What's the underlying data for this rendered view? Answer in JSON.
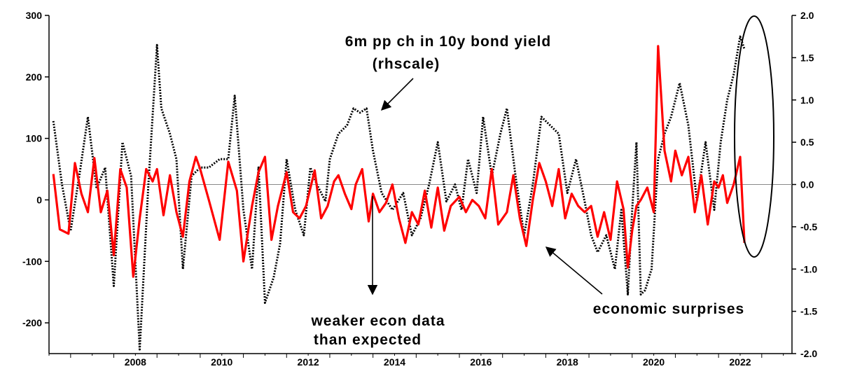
{
  "chart_data": {
    "type": "line",
    "title": "",
    "xlabel": "",
    "ylabel": "",
    "x_range": [
      2006.5,
      2023.7
    ],
    "ylim_left": [
      -250,
      300
    ],
    "ylim_right": [
      -2.0,
      2.0
    ],
    "x_ticks": [
      2008,
      2010,
      2012,
      2014,
      2016,
      2018,
      2020,
      2022
    ],
    "left_ticks": [
      300,
      200,
      100,
      0,
      -100,
      -200
    ],
    "left_tick_labels": [
      "300",
      "200",
      "100",
      "0",
      "-100",
      "-200"
    ],
    "right_ticks": [
      2.0,
      1.5,
      1.0,
      0.5,
      0.0,
      -0.5,
      -1.0,
      -1.5,
      -2.0
    ],
    "right_tick_labels": [
      "2.0",
      "1.5",
      "1.0",
      "0.5",
      "0.0",
      "-0.5",
      "-1.0",
      "-1.5",
      "-2.0"
    ],
    "reference_line_left": 25,
    "grid": false,
    "series": [
      {
        "name": "economic surprises",
        "axis": "left",
        "color": "#ff0000",
        "style": "solid",
        "x": [
          2006.6,
          2006.75,
          2006.95,
          2007.1,
          2007.25,
          2007.4,
          2007.55,
          2007.7,
          2007.85,
          2008.0,
          2008.15,
          2008.3,
          2008.45,
          2008.6,
          2008.75,
          2008.9,
          2009.0,
          2009.15,
          2009.3,
          2009.45,
          2009.6,
          2009.75,
          2009.9,
          2010.0,
          2010.2,
          2010.45,
          2010.65,
          2010.85,
          2011.0,
          2011.2,
          2011.35,
          2011.5,
          2011.65,
          2011.8,
          2012.0,
          2012.15,
          2012.3,
          2012.45,
          2012.65,
          2012.8,
          2012.95,
          2013.1,
          2013.2,
          2013.35,
          2013.5,
          2013.6,
          2013.75,
          2013.9,
          2014.0,
          2014.15,
          2014.3,
          2014.45,
          2014.6,
          2014.75,
          2014.9,
          2015.05,
          2015.2,
          2015.35,
          2015.5,
          2015.65,
          2015.8,
          2016.0,
          2016.15,
          2016.3,
          2016.45,
          2016.6,
          2016.75,
          2016.9,
          2017.1,
          2017.25,
          2017.4,
          2017.55,
          2017.7,
          2017.85,
          2018.0,
          2018.15,
          2018.3,
          2018.45,
          2018.6,
          2018.75,
          2018.9,
          2019.05,
          2019.2,
          2019.35,
          2019.5,
          2019.65,
          2019.8,
          2019.9,
          2020.0,
          2020.1,
          2020.2,
          2020.35,
          2020.5,
          2020.6,
          2020.75,
          2020.9,
          2021.0,
          2021.15,
          2021.3,
          2021.45,
          2021.6,
          2021.75,
          2021.9,
          2022.0,
          2022.1,
          2022.2,
          2022.35,
          2022.5,
          2022.6
        ],
        "y": [
          42,
          -48,
          -55,
          60,
          10,
          -20,
          68,
          -20,
          15,
          -90,
          50,
          20,
          -125,
          -30,
          50,
          30,
          50,
          -25,
          40,
          -20,
          -60,
          30,
          70,
          50,
          0,
          -65,
          62,
          15,
          -100,
          -10,
          45,
          70,
          -65,
          -10,
          45,
          -20,
          -30,
          -10,
          48,
          -30,
          -10,
          30,
          40,
          10,
          -15,
          25,
          50,
          -35,
          10,
          -20,
          -5,
          25,
          -30,
          -70,
          -20,
          -40,
          15,
          -45,
          20,
          -50,
          -10,
          5,
          -20,
          0,
          -10,
          -30,
          50,
          -40,
          -20,
          40,
          -30,
          -75,
          0,
          60,
          30,
          -10,
          50,
          -30,
          10,
          -10,
          -20,
          -10,
          -60,
          -20,
          -65,
          30,
          -15,
          -110,
          -50,
          -10,
          0,
          20,
          -20,
          250,
          80,
          30,
          80,
          40,
          70,
          -20,
          40,
          -40,
          30,
          20,
          40,
          -5,
          25,
          70,
          -70
        ]
      },
      {
        "name": "6m pp ch in 10y bond yield (rhscale)",
        "axis": "right",
        "color": "#000000",
        "style": "dotted",
        "x": [
          2006.6,
          2006.8,
          2007.0,
          2007.2,
          2007.4,
          2007.6,
          2007.8,
          2008.0,
          2008.2,
          2008.4,
          2008.6,
          2008.8,
          2009.0,
          2009.1,
          2009.3,
          2009.45,
          2009.6,
          2009.8,
          2010.0,
          2010.2,
          2010.45,
          2010.65,
          2010.8,
          2011.0,
          2011.2,
          2011.35,
          2011.5,
          2011.7,
          2011.85,
          2012.0,
          2012.2,
          2012.4,
          2012.55,
          2012.7,
          2012.9,
          2013.0,
          2013.2,
          2013.4,
          2013.55,
          2013.7,
          2013.85,
          2014.0,
          2014.2,
          2014.45,
          2014.7,
          2014.9,
          2015.1,
          2015.3,
          2015.5,
          2015.7,
          2015.9,
          2016.05,
          2016.2,
          2016.4,
          2016.55,
          2016.75,
          2016.95,
          2017.1,
          2017.3,
          2017.5,
          2017.7,
          2017.9,
          2018.1,
          2018.3,
          2018.5,
          2018.7,
          2018.9,
          2019.05,
          2019.2,
          2019.4,
          2019.6,
          2019.75,
          2019.9,
          2020.0,
          2020.1,
          2020.2,
          2020.3,
          2020.45,
          2020.6,
          2020.75,
          2020.9,
          2021.1,
          2021.3,
          2021.5,
          2021.7,
          2021.9,
          2022.05,
          2022.2,
          2022.35,
          2022.5,
          2022.6
        ],
        "y": [
          0.75,
          0.0,
          -0.55,
          0.1,
          0.8,
          -0.05,
          0.2,
          -1.2,
          0.5,
          0.1,
          -1.95,
          0.0,
          1.65,
          0.9,
          0.6,
          0.3,
          -1.0,
          0.1,
          0.2,
          0.2,
          0.3,
          0.3,
          1.05,
          -0.3,
          -1.0,
          0.2,
          -1.4,
          -1.1,
          -0.7,
          0.3,
          -0.3,
          -0.6,
          0.2,
          0.0,
          -0.2,
          0.3,
          0.6,
          0.7,
          0.9,
          0.85,
          0.9,
          0.4,
          -0.1,
          -0.3,
          -0.1,
          -0.6,
          -0.4,
          0.0,
          0.5,
          -0.2,
          0.0,
          -0.3,
          0.3,
          -0.1,
          0.8,
          0.1,
          0.6,
          0.9,
          0.1,
          -0.6,
          0.0,
          0.8,
          0.7,
          0.6,
          -0.1,
          0.3,
          -0.2,
          -0.6,
          -0.8,
          -0.6,
          -1.0,
          -0.3,
          -1.3,
          -0.3,
          0.5,
          -1.3,
          -1.25,
          -1.0,
          0.3,
          0.6,
          0.8,
          1.2,
          0.7,
          -0.2,
          0.5,
          -0.3,
          0.5,
          1.0,
          1.3,
          1.75,
          1.6
        ]
      }
    ]
  },
  "annotations": {
    "bond_label_line1": "6m pp ch in 10y bond yield",
    "bond_label_line2": "(rhscale)",
    "weaker_line1": "weaker econ data",
    "weaker_line2": "than expected",
    "surprises_label": "economic surprises"
  }
}
